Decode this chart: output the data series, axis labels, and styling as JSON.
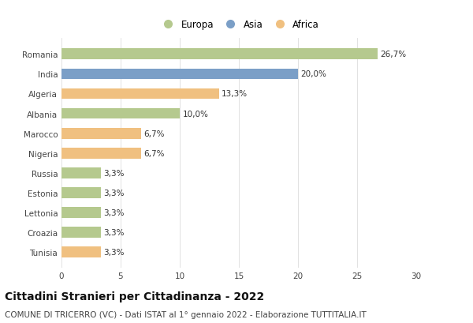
{
  "countries": [
    "Romania",
    "India",
    "Algeria",
    "Albania",
    "Marocco",
    "Nigeria",
    "Russia",
    "Estonia",
    "Lettonia",
    "Croazia",
    "Tunisia"
  ],
  "values": [
    26.7,
    20.0,
    13.3,
    10.0,
    6.7,
    6.7,
    3.3,
    3.3,
    3.3,
    3.3,
    3.3
  ],
  "labels": [
    "26,7%",
    "20,0%",
    "13,3%",
    "10,0%",
    "6,7%",
    "6,7%",
    "3,3%",
    "3,3%",
    "3,3%",
    "3,3%",
    "3,3%"
  ],
  "continents": [
    "Europa",
    "Asia",
    "Africa",
    "Europa",
    "Africa",
    "Africa",
    "Europa",
    "Europa",
    "Europa",
    "Europa",
    "Africa"
  ],
  "colors": {
    "Europa": "#b5c98e",
    "Asia": "#7b9fc7",
    "Africa": "#f0c080"
  },
  "legend_labels": [
    "Europa",
    "Asia",
    "Africa"
  ],
  "xlim": [
    0,
    30
  ],
  "xticks": [
    0,
    5,
    10,
    15,
    20,
    25,
    30
  ],
  "title": "Cittadini Stranieri per Cittadinanza - 2022",
  "subtitle": "COMUNE DI TRICERRO (VC) - Dati ISTAT al 1° gennaio 2022 - Elaborazione TUTTITALIA.IT",
  "title_fontsize": 10,
  "subtitle_fontsize": 7.5,
  "label_fontsize": 7.5,
  "tick_fontsize": 7.5,
  "legend_fontsize": 8.5,
  "background_color": "#ffffff",
  "bar_height": 0.55
}
